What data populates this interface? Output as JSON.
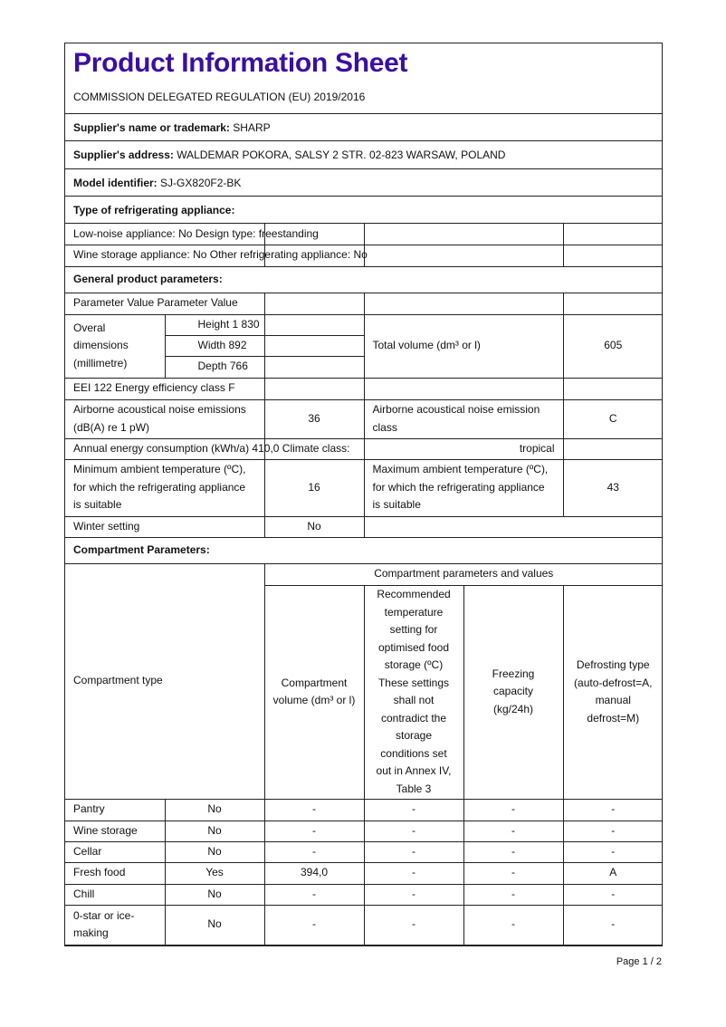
{
  "title": "Product Information Sheet",
  "regulation": "COMMISSION DELEGATED REGULATION (EU) 2019/2016",
  "supplier": {
    "label": "Supplier's name or trademark:",
    "value": "SHARP"
  },
  "address": {
    "label": "Supplier's address:",
    "value": "WALDEMAR POKORA, SALSY 2 STR. 02-823 WARSAW, POLAND"
  },
  "model": {
    "label": "Model identifier:",
    "value": "SJ-GX820F2-BK"
  },
  "type_heading": "Type of refrigerating appliance:",
  "low_noise": "Low-noise appliance: No Design type: freestanding",
  "wine_storage": "Wine storage appliance: No Other refrigerating appliance: No",
  "general_heading": "General product parameters:",
  "param_header": "Parameter Value Parameter Value",
  "dimensions": {
    "label": "Overal dimensions (millimetre)",
    "height": "Height 1 830",
    "width": "Width 892",
    "depth": "Depth 766",
    "total_volume_label": "Total volume (dm³ or l)",
    "total_volume": "605"
  },
  "eei": "EEI 122 Energy efficiency class F",
  "noise": {
    "label": "Airborne acoustical noise emissions (dB(A) re 1 pW)",
    "value": "36",
    "class_label": "Airborne acoustical noise emission class",
    "class_value": "C"
  },
  "annual": {
    "label": "Annual energy consumption (kWh/a) 410,0 Climate class:",
    "climate": "tropical"
  },
  "ambient": {
    "min_label": "Minimum ambient temperature (ºC), for which the refrigerating appliance is suitable",
    "min": "16",
    "max_label": "Maximum ambient temperature (ºC), for which the refrigerating appliance is suitable",
    "max": "43"
  },
  "winter": {
    "label": "Winter setting",
    "value": "No"
  },
  "compartment_heading": "Compartment Parameters:",
  "compartment_table": {
    "type_header": "Compartment type",
    "group_header": "Compartment parameters and values",
    "headers": [
      "Compartment volume (dm³ or l)",
      "Recommended temperature setting for optimised food storage (ºC) These settings shall not contradict the storage conditions set out in Annex IV, Table 3",
      "Freezing capacity (kg/24h)",
      "Defrosting type (auto-defrost=A, manual defrost=M)"
    ],
    "rows": [
      [
        "Pantry",
        "No",
        "-",
        "-",
        "-",
        "-"
      ],
      [
        "Wine storage",
        "No",
        "-",
        "-",
        "-",
        "-"
      ],
      [
        "Cellar",
        "No",
        "-",
        "-",
        "-",
        "-"
      ],
      [
        "Fresh food",
        "Yes",
        "394,0",
        "-",
        "-",
        "A"
      ],
      [
        "Chill",
        "No",
        "-",
        "-",
        "-",
        "-"
      ],
      [
        "0-star or ice-making",
        "No",
        "-",
        "-",
        "-",
        "-"
      ]
    ]
  },
  "footer": "Page 1 / 2",
  "colors": {
    "title": "#3b0fa0",
    "border": "#222222"
  }
}
